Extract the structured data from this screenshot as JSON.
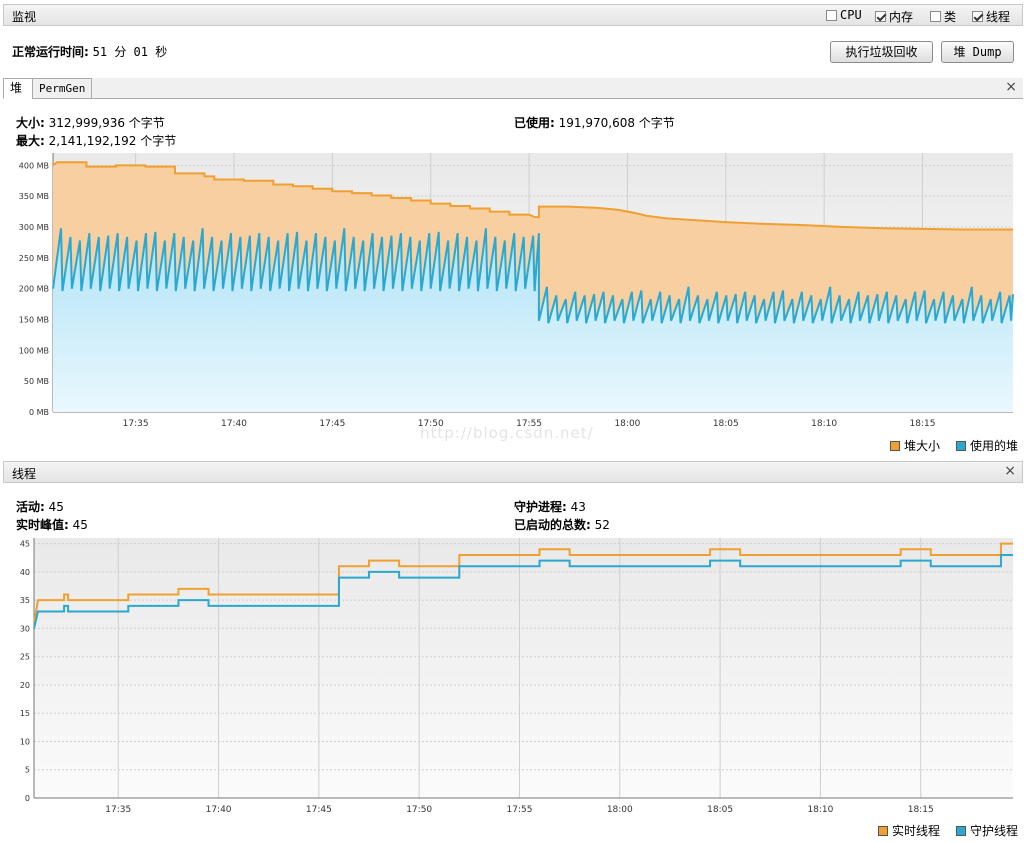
{
  "header": {
    "title": "监视",
    "checkboxes": [
      {
        "label": "CPU",
        "checked": false
      },
      {
        "label": "内存",
        "checked": true
      },
      {
        "label": "类",
        "checked": false
      },
      {
        "label": "线程",
        "checked": true
      }
    ],
    "uptime_label": "正常运行时间:",
    "uptime_value": "51 分 01 秒",
    "gc_button": "执行垃圾回收",
    "dump_button": "堆 Dump"
  },
  "heap": {
    "tabs": [
      "堆",
      "PermGen"
    ],
    "close": "×",
    "size_label": "大小:",
    "size_value": "312,999,936 个字节",
    "max_label": "最大:",
    "max_value": "2,141,192,192 个字节",
    "used_label": "已使用:",
    "used_value": "191,970,608 个字节",
    "legend": [
      "堆大小",
      "使用的堆"
    ]
  },
  "threads": {
    "title": "线程",
    "close": "×",
    "live_label": "活动:",
    "live_value": "45",
    "peak_label": "实时峰值:",
    "peak_value": "45",
    "daemon_label": "守护进程:",
    "daemon_value": "43",
    "started_label": "已启动的总数:",
    "started_value": "52",
    "legend": [
      "实时线程",
      "守护线程"
    ]
  },
  "watermark": "http://blog.csdn.net/",
  "colors": {
    "heap_size": "#f0a030",
    "heap_used": "#2aa8d0",
    "heap_size_fill": "#f8cfa0",
    "heap_used_fill": "#c4e8f8",
    "live_threads": "#f0a030",
    "daemon_threads": "#2aa8d0"
  },
  "chart_data": [
    {
      "type": "area",
      "title": "",
      "x_ticks": [
        "17:35",
        "17:40",
        "17:45",
        "17:50",
        "17:55",
        "18:00",
        "18:05",
        "18:10",
        "18:15"
      ],
      "y_ticks": [
        "0 MB",
        "50 MB",
        "100 MB",
        "150 MB",
        "200 MB",
        "250 MB",
        "300 MB",
        "350 MB",
        "400 MB"
      ],
      "ylim": [
        0,
        420
      ],
      "xlim_minutes": [
        "17:30.8",
        "18:19.6"
      ],
      "series": [
        {
          "name": "堆大小",
          "points": [
            [
              30.8,
              400
            ],
            [
              31.0,
              405
            ],
            [
              32.5,
              405
            ],
            [
              32.5,
              398
            ],
            [
              34.0,
              398
            ],
            [
              34.0,
              400
            ],
            [
              35.5,
              400
            ],
            [
              35.5,
              398
            ],
            [
              37.0,
              398
            ],
            [
              37.0,
              387
            ],
            [
              38.5,
              387
            ],
            [
              38.5,
              382
            ],
            [
              39.0,
              382
            ],
            [
              39.0,
              377
            ],
            [
              40.5,
              377
            ],
            [
              40.5,
              375
            ],
            [
              42.0,
              375
            ],
            [
              42.0,
              369
            ],
            [
              43.0,
              369
            ],
            [
              43.0,
              366
            ],
            [
              44.0,
              366
            ],
            [
              44.0,
              362
            ],
            [
              45.0,
              362
            ],
            [
              45.0,
              358
            ],
            [
              46.0,
              358
            ],
            [
              46.0,
              355
            ],
            [
              47.0,
              355
            ],
            [
              47.0,
              351
            ],
            [
              48.0,
              351
            ],
            [
              48.0,
              347
            ],
            [
              49.0,
              347
            ],
            [
              49.0,
              343
            ],
            [
              50.0,
              343
            ],
            [
              50.0,
              338
            ],
            [
              51.0,
              338
            ],
            [
              51.0,
              334
            ],
            [
              52.0,
              334
            ],
            [
              52.0,
              330
            ],
            [
              53.0,
              330
            ],
            [
              53.0,
              325
            ],
            [
              54.0,
              325
            ],
            [
              54.0,
              320
            ],
            [
              55.0,
              320
            ],
            [
              55.3,
              316
            ],
            [
              55.5,
              316
            ],
            [
              55.5,
              333
            ],
            [
              57.0,
              333
            ],
            [
              58.5,
              331
            ],
            [
              59.5,
              328
            ],
            [
              60.5,
              322
            ],
            [
              61.0,
              318
            ],
            [
              62.0,
              314
            ],
            [
              63.5,
              311
            ],
            [
              65.0,
              308
            ],
            [
              67.0,
              305
            ],
            [
              69.0,
              303
            ],
            [
              71.0,
              300
            ],
            [
              73.0,
              298
            ],
            [
              75.0,
              297
            ],
            [
              77.0,
              296
            ],
            [
              79.6,
              296
            ]
          ]
        },
        {
          "name": "使用的堆",
          "range_min": [
            195,
            210,
            145,
            150
          ],
          "range_max": [
            305,
            275,
            195,
            200
          ],
          "segments": [
            {
              "from": 30.8,
              "to": 55.5,
              "low": 200,
              "high": 290
            },
            {
              "from": 55.5,
              "to": 79.6,
              "low": 148,
              "high": 195
            }
          ]
        }
      ]
    },
    {
      "type": "line",
      "title": "",
      "x_ticks": [
        "17:35",
        "17:40",
        "17:45",
        "17:50",
        "17:55",
        "18:00",
        "18:05",
        "18:10",
        "18:15"
      ],
      "y_ticks": [
        "0",
        "5",
        "10",
        "15",
        "20",
        "25",
        "30",
        "35",
        "40",
        "45"
      ],
      "ylim": [
        0,
        46
      ],
      "series": [
        {
          "name": "实时线程",
          "points": [
            [
              30.8,
              31
            ],
            [
              31.0,
              35
            ],
            [
              32.3,
              35
            ],
            [
              32.3,
              36
            ],
            [
              32.5,
              36
            ],
            [
              32.5,
              35
            ],
            [
              35.5,
              35
            ],
            [
              35.5,
              36
            ],
            [
              38.0,
              36
            ],
            [
              38.0,
              37
            ],
            [
              39.5,
              37
            ],
            [
              39.5,
              36
            ],
            [
              46.0,
              36
            ],
            [
              46.0,
              41
            ],
            [
              47.5,
              41
            ],
            [
              47.5,
              42
            ],
            [
              49.0,
              42
            ],
            [
              49.0,
              41
            ],
            [
              52.0,
              41
            ],
            [
              52.0,
              43
            ],
            [
              56.0,
              43
            ],
            [
              56.0,
              44
            ],
            [
              57.5,
              44
            ],
            [
              57.5,
              43
            ],
            [
              64.5,
              43
            ],
            [
              64.5,
              44
            ],
            [
              66.0,
              44
            ],
            [
              66.0,
              43
            ],
            [
              74.0,
              43
            ],
            [
              74.0,
              44
            ],
            [
              75.5,
              44
            ],
            [
              75.5,
              43
            ],
            [
              79.0,
              43
            ],
            [
              79.0,
              45
            ],
            [
              79.6,
              45
            ]
          ]
        },
        {
          "name": "守护线程",
          "points": [
            [
              30.8,
              30
            ],
            [
              31.0,
              33
            ],
            [
              32.3,
              33
            ],
            [
              32.3,
              34
            ],
            [
              32.5,
              34
            ],
            [
              32.5,
              33
            ],
            [
              35.5,
              33
            ],
            [
              35.5,
              34
            ],
            [
              38.0,
              34
            ],
            [
              38.0,
              35
            ],
            [
              39.5,
              35
            ],
            [
              39.5,
              34
            ],
            [
              46.0,
              34
            ],
            [
              46.0,
              39
            ],
            [
              47.5,
              39
            ],
            [
              47.5,
              40
            ],
            [
              49.0,
              40
            ],
            [
              49.0,
              39
            ],
            [
              52.0,
              39
            ],
            [
              52.0,
              41
            ],
            [
              56.0,
              41
            ],
            [
              56.0,
              42
            ],
            [
              57.5,
              42
            ],
            [
              57.5,
              41
            ],
            [
              64.5,
              41
            ],
            [
              64.5,
              42
            ],
            [
              66.0,
              42
            ],
            [
              66.0,
              41
            ],
            [
              74.0,
              41
            ],
            [
              74.0,
              42
            ],
            [
              75.5,
              42
            ],
            [
              75.5,
              41
            ],
            [
              79.0,
              41
            ],
            [
              79.0,
              43
            ],
            [
              79.6,
              43
            ]
          ]
        }
      ]
    }
  ]
}
